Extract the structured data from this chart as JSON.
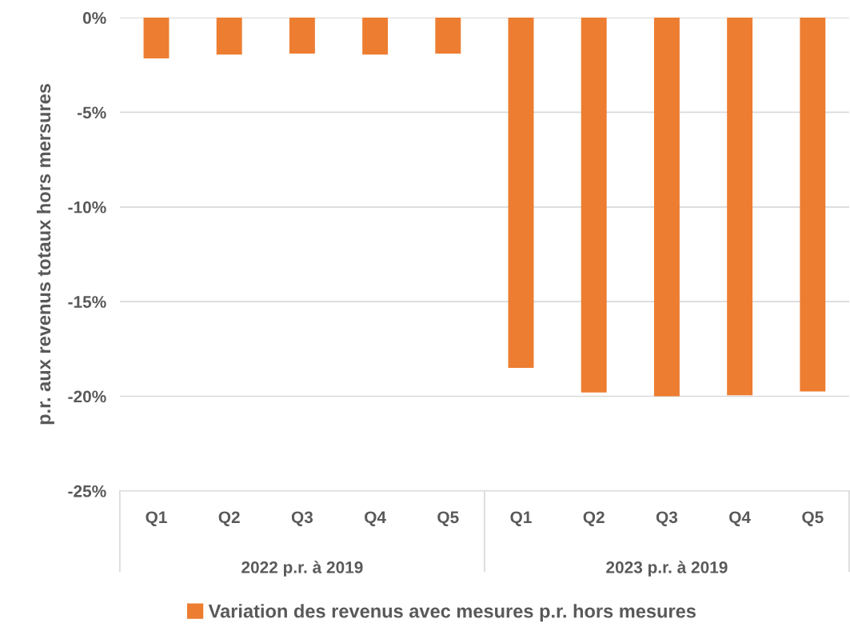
{
  "chart_data": {
    "type": "bar",
    "ylabel": "p.r. aux revenus totaux hors mersures",
    "categories": [
      "Q1",
      "Q2",
      "Q3",
      "Q4",
      "Q5",
      "Q1",
      "Q2",
      "Q3",
      "Q4",
      "Q5"
    ],
    "series": [
      {
        "name": "Variation des revenus avec mesures p.r. hors mesures",
        "color": "#ed7d31",
        "values": [
          -2.15,
          -1.95,
          -1.9,
          -1.95,
          -1.9,
          -18.5,
          -19.8,
          -20.0,
          -19.95,
          -19.75
        ]
      }
    ],
    "annotations": [
      "2022 p.r. à 2019",
      "2023 p.r. à 2019"
    ],
    "ylim": [
      -25,
      0
    ],
    "yticks": [
      {
        "value": -25,
        "label": "-25%"
      },
      {
        "value": -20,
        "label": "-20%"
      },
      {
        "value": -15,
        "label": "-15%"
      },
      {
        "value": -10,
        "label": "-10%"
      },
      {
        "value": -5,
        "label": "-5%"
      },
      {
        "value": 0,
        "label": "0%"
      }
    ],
    "grid": "y",
    "legend": "bottom"
  }
}
